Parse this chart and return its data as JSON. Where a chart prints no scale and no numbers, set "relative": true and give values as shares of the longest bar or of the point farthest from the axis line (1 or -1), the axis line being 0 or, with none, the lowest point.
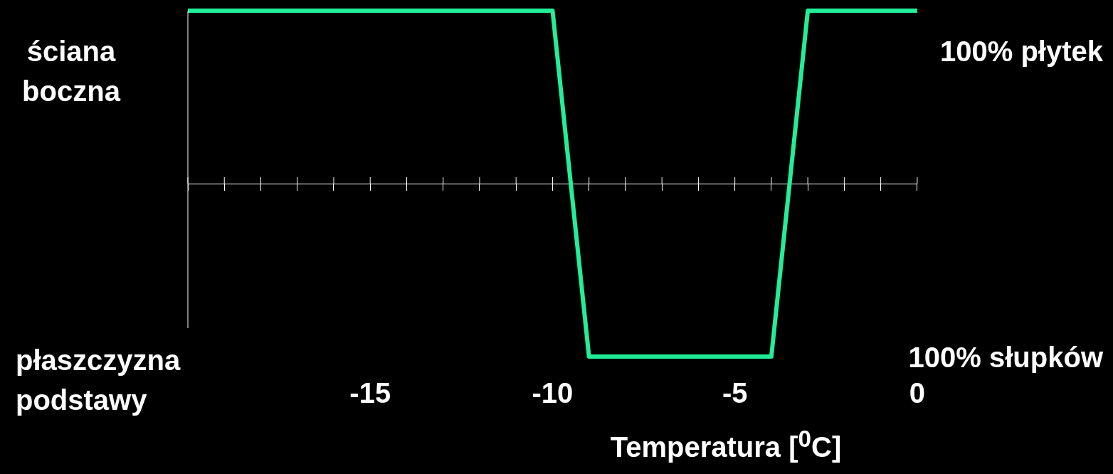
{
  "chart_data": {
    "type": "line",
    "relative": true,
    "xlabel": "Temperatura  [$^{0}$C]",
    "annotations": [
      "ściana boczna",
      "płaszczyzna podstawy",
      "100% płytek",
      "100% słupków"
    ],
    "xlim": [
      -20,
      0
    ],
    "xticks": [
      {
        "value": -20,
        "label": null
      },
      {
        "value": -19,
        "label": null
      },
      {
        "value": -18,
        "label": null
      },
      {
        "value": -17,
        "label": null
      },
      {
        "value": -16,
        "label": null
      },
      -15,
      {
        "value": -14,
        "label": null
      },
      {
        "value": -13,
        "label": null
      },
      {
        "value": -12,
        "label": null
      },
      {
        "value": -11,
        "label": null
      },
      -10,
      {
        "value": -9,
        "label": null
      },
      {
        "value": -8,
        "label": null
      },
      {
        "value": -7,
        "label": null
      },
      {
        "value": -6,
        "label": null
      },
      -5,
      {
        "value": -4,
        "label": null
      },
      {
        "value": -3,
        "label": null
      },
      {
        "value": -2,
        "label": null
      },
      {
        "value": -1,
        "label": null
      },
      0
    ],
    "series": [
      {
        "color": "#22ee99",
        "x": [
          -20,
          -10,
          -9,
          -4,
          -3,
          0
        ],
        "values": [
          1,
          1,
          -1,
          -1,
          1,
          1
        ]
      }
    ],
    "grid": false,
    "legend": false,
    "marker": "none",
    "line_style": "solid"
  }
}
